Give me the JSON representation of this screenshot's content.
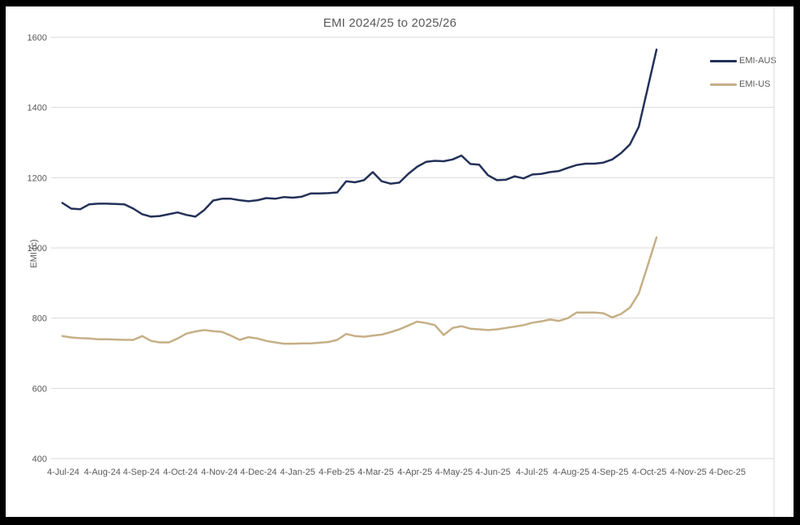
{
  "frame": {
    "background_color": "#000000",
    "chart_background_color": "#ffffff",
    "chart_border_color": "#d9d9d9"
  },
  "chart": {
    "title": "EMI 2024/25 to 2025/26",
    "y_axis_title": "EMI (c)",
    "text_color": "#595959",
    "gridline_color": "#d9d9d9"
  },
  "chart_data": {
    "type": "line",
    "title": "EMI 2024/25 to 2025/26",
    "xlabel": "",
    "ylabel": "EMI (c)",
    "ylim": [
      400,
      1600
    ],
    "y_ticks": [
      400,
      600,
      800,
      1000,
      1200,
      1400,
      1600
    ],
    "x_tick_labels": [
      "4-Jul-24",
      "4-Aug-24",
      "4-Sep-24",
      "4-Oct-24",
      "4-Nov-24",
      "4-Dec-24",
      "4-Jan-25",
      "4-Feb-25",
      "4-Mar-25",
      "4-Apr-25",
      "4-May-25",
      "4-Jun-25",
      "4-Jul-25",
      "4-Aug-25",
      "4-Sep-25",
      "4-Oct-25",
      "4-Nov-25",
      "4-Dec-25"
    ],
    "x_frequency": "weekly points from 4-Jul-24 to 4-Oct-25; axis labelled monthly, extends (no data) to 4-Dec-25",
    "grid": "horizontal gridlines on",
    "legend_position": "top-right",
    "series": [
      {
        "name": "EMI-AUS",
        "color": "#233158",
        "values": [
          1128,
          1112,
          1110,
          1124,
          1126,
          1126,
          1125,
          1124,
          1112,
          1096,
          1089,
          1091,
          1096,
          1101,
          1094,
          1089,
          1108,
          1135,
          1140,
          1140,
          1136,
          1133,
          1136,
          1142,
          1140,
          1145,
          1143,
          1146,
          1155,
          1155,
          1156,
          1158,
          1190,
          1187,
          1193,
          1216,
          1190,
          1183,
          1186,
          1211,
          1231,
          1245,
          1248,
          1247,
          1252,
          1263,
          1239,
          1237,
          1207,
          1193,
          1194,
          1204,
          1198,
          1209,
          1211,
          1216,
          1219,
          1228,
          1236,
          1240,
          1240,
          1243,
          1252,
          1270,
          1295,
          1345,
          1455,
          1565
        ]
      },
      {
        "name": "EMI-US",
        "color": "#c6af86",
        "values": [
          749,
          745,
          743,
          742,
          740,
          740,
          739,
          738,
          738,
          749,
          735,
          731,
          731,
          742,
          756,
          762,
          766,
          763,
          761,
          750,
          738,
          746,
          742,
          735,
          731,
          727,
          727,
          728,
          728,
          730,
          732,
          738,
          755,
          749,
          747,
          750,
          753,
          760,
          768,
          779,
          790,
          786,
          780,
          752,
          772,
          777,
          770,
          768,
          766,
          768,
          772,
          776,
          780,
          787,
          791,
          796,
          792,
          800,
          816,
          816,
          816,
          814,
          802,
          812,
          830,
          870,
          950,
          1030
        ]
      }
    ]
  }
}
